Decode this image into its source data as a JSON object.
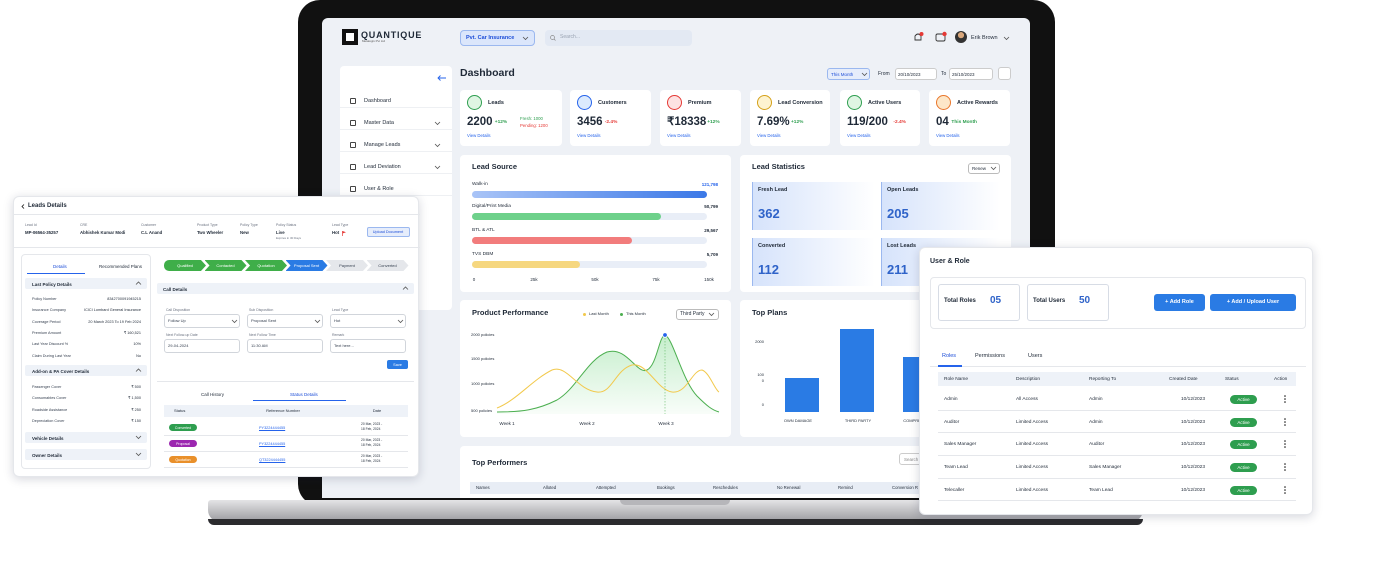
{
  "header": {
    "brand": "QUANTIQUE",
    "brand_sub": "Metalogix Pvt Ltd",
    "insurance_select": "Pvt. Car Insurance",
    "search_placeholder": "Search...",
    "user": "Erik Brown"
  },
  "sidebar": [
    "Dashboard",
    "Master Data",
    "Manage Leads",
    "Lead Deviation",
    "User & Role"
  ],
  "dashboard": {
    "title": "Dashboard",
    "period": "This Month",
    "from_label": "From",
    "from_date": "20/10/2023",
    "to_label": "To",
    "to_date": "25/10/2023"
  },
  "kpis": [
    {
      "label": "Leads",
      "value": "2200",
      "change": "+12%",
      "extra": [
        "Fresh: 1000",
        "Pending: 1200"
      ],
      "link": "View Details"
    },
    {
      "label": "Customers",
      "value": "3456",
      "change": "-2.4%",
      "link": "View Details"
    },
    {
      "label": "Premium",
      "value": "₹18338",
      "change": "+12%",
      "link": "View Details"
    },
    {
      "label": "Lead Conversion",
      "value": "7.69%",
      "change": "+12%",
      "link": "View Details"
    },
    {
      "label": "Active Users",
      "value": "119/200",
      "change": "-2.4%",
      "link": "View Details"
    },
    {
      "label": "Active Rewards",
      "value": "04",
      "change": "This Month",
      "link": "View Details"
    }
  ],
  "lead_source": {
    "title": "Lead Source",
    "items": [
      {
        "label": "Walk-in",
        "value": "121,798"
      },
      {
        "label": "Digital/Print Media",
        "value": "50,799"
      },
      {
        "label": "BTL & ATL",
        "value": "29,567"
      },
      {
        "label": "TVS DBM",
        "value": "5,709"
      }
    ],
    "axis": [
      "0",
      "25k",
      "50k",
      "75k",
      "150k"
    ]
  },
  "lead_statistics": {
    "title": "Lead Statistics",
    "filter": "Renew",
    "cards": [
      {
        "label": "Fresh Lead",
        "value": "362"
      },
      {
        "label": "Open Leads",
        "value": "205"
      },
      {
        "label": "Converted",
        "value": "112"
      },
      {
        "label": "Lost Leads",
        "value": "211"
      }
    ]
  },
  "product_performance": {
    "title": "Product Performance",
    "legend": [
      "Last Month",
      "This Month"
    ],
    "filter": "Third Party",
    "y_labels": [
      "2000 policies",
      "1500 policies",
      "1000 policies",
      "500 policies"
    ],
    "x_labels": [
      "Week 1",
      "Week 2",
      "Week 3"
    ]
  },
  "top_plans": {
    "title": "Top Plans",
    "y_labels": [
      "2000",
      "100",
      "0",
      "0"
    ],
    "x_labels": [
      "OWN DAMAGE",
      "THIRD PARTY",
      "COMPRE"
    ]
  },
  "top_performers": {
    "title": "Top Performers",
    "search": "Search",
    "columns": [
      "Names",
      "Alloted",
      "Attempted",
      "Bookings",
      "Reschedules",
      "No Renewal",
      "Remind",
      "Conversion R"
    ]
  },
  "lead_details": {
    "title": "Leads Details",
    "fields": [
      {
        "label": "Lead Id",
        "value": "MP-06564-35257"
      },
      {
        "label": "CRE",
        "value": "Abhishek Kumar Modi"
      },
      {
        "label": "Customer",
        "value": "C.L Anand"
      },
      {
        "label": "Product Type",
        "value": "Two Wheeler"
      },
      {
        "label": "Policy Type",
        "value": "New"
      },
      {
        "label": "Policy Status",
        "value": "Live",
        "note": "Expires in 30 Days"
      },
      {
        "label": "Lead Type",
        "value": "Hot"
      }
    ],
    "upload_button": "Upload Document",
    "tabs": [
      "Details",
      "Recommended Plans"
    ],
    "last_policy": {
      "title": "Last Policy Details",
      "rows": [
        {
          "label": "Policy Number",
          "value": "8342700091945215"
        },
        {
          "label": "Insurance Company",
          "value": "ICICI Lombard General Insurance"
        },
        {
          "label": "Coverage Period",
          "value": "20 March 2023 To 19 Feb 2024"
        },
        {
          "label": "Premium Amount",
          "value": "₹ 160,521"
        },
        {
          "label": "Last Year Discount %",
          "value": "10%"
        },
        {
          "label": "Claim During Last Year",
          "value": "No"
        }
      ]
    },
    "addon": {
      "title": "Add-on & PA Cover Details",
      "rows": [
        {
          "label": "Passenger Cover",
          "value": "₹ 500"
        },
        {
          "label": "Consumables Cover",
          "value": "₹ 1,500"
        },
        {
          "label": "Roadside Assistance",
          "value": "₹ 250"
        },
        {
          "label": "Depreciation Cover",
          "value": "₹ 150"
        }
      ]
    },
    "sections": [
      "Vehicle Details",
      "Owner Details"
    ],
    "steps": [
      "Qualified",
      "Contacted",
      "Quotation",
      "Proposal Sent",
      "Payment",
      "Converted"
    ],
    "call_details": {
      "title": "Call Details",
      "fields": [
        {
          "label": "Call Disposition",
          "value": "Follow Up"
        },
        {
          "label": "Sub Disposition",
          "value": "Proposal Sent"
        },
        {
          "label": "Lead Type",
          "value": "Hot"
        },
        {
          "label": "Next Follow-up Date",
          "value": "29-04-2024"
        },
        {
          "label": "Next Follow Time",
          "value": "11:30 AM"
        },
        {
          "label": "Remark",
          "value": "Text here..."
        }
      ],
      "save": "Save"
    },
    "history_tabs": [
      "Call History",
      "Status Details"
    ],
    "status_table": {
      "columns": [
        "Status",
        "Reference Number",
        "Date"
      ],
      "rows": [
        {
          "status": "Converted",
          "reference": "PY3224444455",
          "date": [
            "20 Mar, 2023 -",
            "18 Feb, 2024"
          ]
        },
        {
          "status": "Proposal",
          "reference": "PY3224444455",
          "date": [
            "20 Mar, 2023 -",
            "18 Feb, 2024"
          ]
        },
        {
          "status": "Quotation",
          "reference": "QT3224444455",
          "date": [
            "20 Mar, 2023 -",
            "18 Feb, 2024"
          ]
        }
      ]
    }
  },
  "user_role": {
    "title": "User & Role",
    "stats": [
      {
        "label": "Total Roles",
        "value": "05"
      },
      {
        "label": "Total Users",
        "value": "50"
      }
    ],
    "buttons": [
      "+ Add Role",
      "+ Add / Upload User"
    ],
    "tabs": [
      "Roles",
      "Permissions",
      "Users"
    ],
    "columns": [
      "Role Name",
      "Description",
      "Reporting To",
      "Created Date",
      "Status",
      "Action"
    ],
    "rows": [
      [
        "Admin",
        "All Access",
        "Admin",
        "10/12/2023",
        "Active"
      ],
      [
        "Auditor",
        "Limited Access",
        "Admin",
        "10/12/2023",
        "Active"
      ],
      [
        "Sales Manager",
        "Limited Access",
        "Auditor",
        "10/12/2023",
        "Active"
      ],
      [
        "Team Lead",
        "Limited Access",
        "Sales Manager",
        "10/12/2023",
        "Active"
      ],
      [
        "Telecaller",
        "Limited Access",
        "Team Lead",
        "10/12/2023",
        "Active"
      ]
    ]
  }
}
